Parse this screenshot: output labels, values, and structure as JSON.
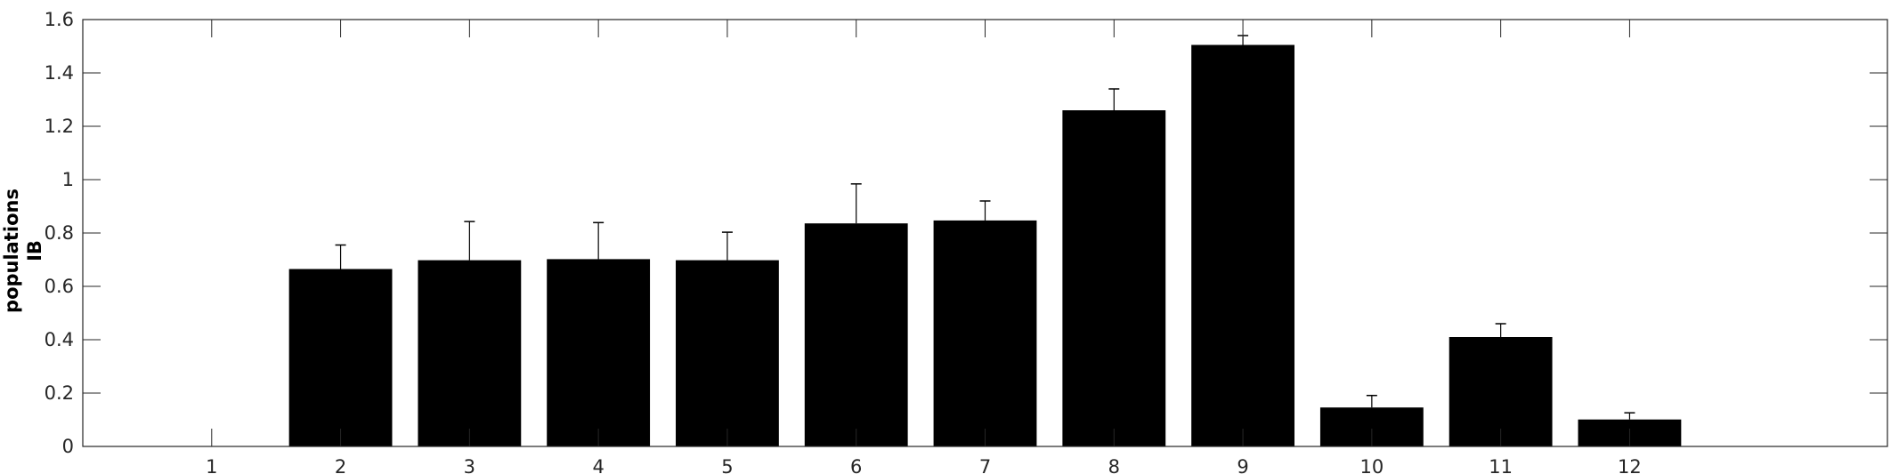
{
  "chart_data": {
    "type": "bar",
    "categories": [
      "1",
      "2",
      "3",
      "4",
      "5",
      "6",
      "7",
      "8",
      "9",
      "10",
      "11",
      "12"
    ],
    "values": [
      0,
      0.665,
      0.698,
      0.702,
      0.698,
      0.836,
      0.847,
      1.26,
      1.505,
      0.146,
      0.41,
      0.101
    ],
    "errors": [
      0,
      0.09,
      0.145,
      0.137,
      0.105,
      0.148,
      0.073,
      0.08,
      0.035,
      0.045,
      0.05,
      0.025
    ],
    "ylabel_lines": [
      "populations",
      "IB"
    ],
    "xlabel": "",
    "title": "",
    "xlim": [
      0,
      14
    ],
    "ylim": [
      0,
      1.6
    ],
    "yticks": [
      "0",
      "0.2",
      "0.4",
      "0.6",
      "0.8",
      "1",
      "1.2",
      "1.4",
      "1.6"
    ],
    "bar_color": "#000000",
    "grid": false,
    "box": true
  }
}
